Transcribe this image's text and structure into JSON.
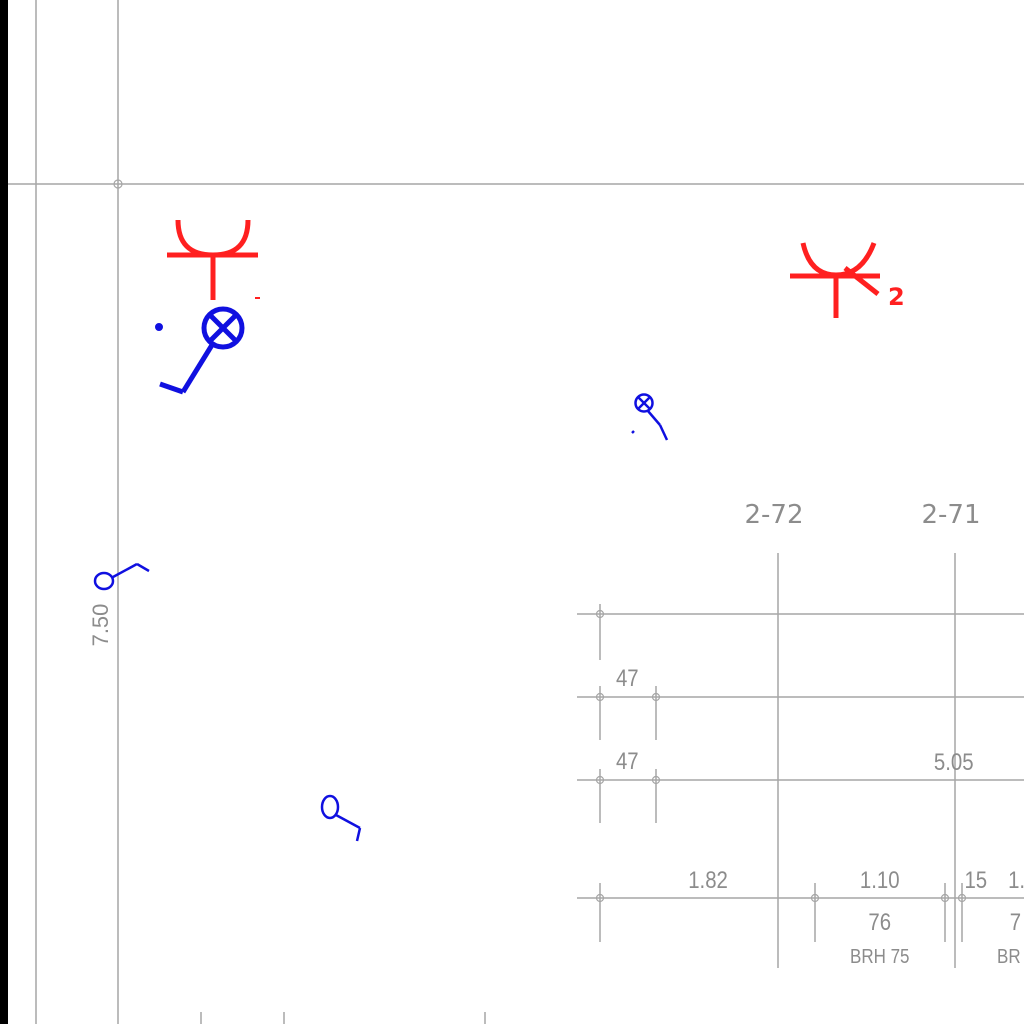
{
  "grid_axes": {
    "axis_1": "2-72",
    "axis_2": "2-71"
  },
  "dimensions": {
    "vertical_left": "7.50",
    "row_47_a": "47",
    "row_47_b": "47",
    "d_505": "5.05",
    "d_182": "1.82",
    "d_110": "1.10",
    "d_15": "15",
    "d_1_partial": "1.",
    "d_76": "76",
    "d_7_partial": "7",
    "brh_75": "BRH 75",
    "brh_partial": "BR"
  },
  "symbols": {
    "antenna_red": "antenna-outlet-icon",
    "antenna_red_2": "antenna-outlet-2-icon",
    "antenna_sub": "2",
    "lamp_blue": "ceiling-lamp-switch-icon",
    "lamp_blue_small": "small-lamp-switch-icon",
    "switch_blue_1": "switch-icon",
    "switch_blue_2": "switch-icon"
  },
  "colors": {
    "background": "#ffffff",
    "frame_black": "#000000",
    "grid_gray": "#a6a6a6",
    "text_gray": "#8c8c8c",
    "red_symbol": "#ff2020",
    "blue_symbol": "#1010e0"
  }
}
